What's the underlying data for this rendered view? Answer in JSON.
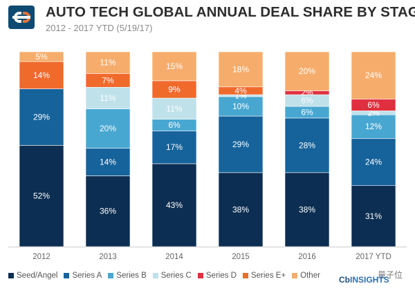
{
  "header": {
    "title": "AUTO TECH GLOBAL ANNUAL DEAL SHARE BY STAGE",
    "subtitle": "2012 - 2017 YTD (5/19/17)"
  },
  "watermark": {
    "brand_cb": "Cb",
    "brand_insights": "INSIGHTS",
    "wechat_label": "量子位"
  },
  "chart_data": {
    "type": "bar",
    "stacked": true,
    "normalized": true,
    "title": "AUTO TECH GLOBAL ANNUAL DEAL SHARE BY STAGE",
    "subtitle": "2012 - 2017 YTD (5/19/17)",
    "xlabel": "",
    "ylabel": "",
    "ylim": [
      0,
      100
    ],
    "unit": "%",
    "categories": [
      "2012",
      "2013",
      "2014",
      "2015",
      "2016",
      "2017 YTD"
    ],
    "series": [
      {
        "name": "Seed/Angel",
        "color": "#0c2e52",
        "values": [
          52,
          36,
          43,
          38,
          38,
          31
        ],
        "labels": [
          "52%",
          "36%",
          "43%",
          "38%",
          "38%",
          "31%"
        ]
      },
      {
        "name": "Series A",
        "color": "#16639b",
        "values": [
          29,
          14,
          17,
          29,
          28,
          24
        ],
        "labels": [
          "29%",
          "14%",
          "17%",
          "29%",
          "28%",
          "24%"
        ]
      },
      {
        "name": "Series B",
        "color": "#48a7d1",
        "values": [
          0,
          20,
          6,
          10,
          6,
          12
        ],
        "labels": [
          "",
          "20%",
          "6%",
          "10%",
          "6%",
          "12%"
        ]
      },
      {
        "name": "Series C",
        "color": "#bfe1ea",
        "values": [
          0,
          11,
          11,
          1,
          6,
          2
        ],
        "labels": [
          "",
          "11%",
          "11%",
          "1%",
          "6%",
          "2%"
        ]
      },
      {
        "name": "Series D",
        "color": "#e0303f",
        "values": [
          0,
          0,
          0,
          0,
          2,
          6
        ],
        "labels": [
          "",
          "",
          "",
          "",
          "2%",
          "6%"
        ]
      },
      {
        "name": "Series E+",
        "color": "#f06a2c",
        "values": [
          14,
          7,
          9,
          4,
          0,
          0
        ],
        "labels": [
          "14%",
          "7%",
          "9%",
          "4%",
          "",
          ""
        ]
      },
      {
        "name": "Other",
        "color": "#f6ad6c",
        "values": [
          5,
          11,
          15,
          18,
          20,
          24
        ],
        "labels": [
          "5%",
          "11%",
          "15%",
          "18%",
          "20%",
          "24%"
        ]
      }
    ],
    "legend": [
      "Seed/Angel",
      "Series A",
      "Series B",
      "Series C",
      "Series D",
      "Series E+",
      "Other"
    ],
    "legend_position": "bottom"
  }
}
